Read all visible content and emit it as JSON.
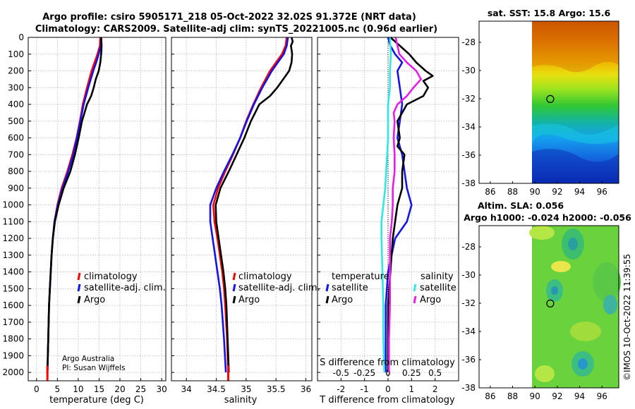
{
  "figure": {
    "title_line1": "Argo profile: csiro 5905171_218 05-Oct-2022 32.02S 91.372E (NRT data)",
    "title_line2": "Climatology: CARS2009. Satellite-adj clim: synTS_20221005.nc (0.96d earlier)",
    "credit_line1": "Argo Australia",
    "credit_line2": "PI: Susan Wijffels",
    "imos_stamp": "©IMOS 10-Oct-2022 11:39:55"
  },
  "colors": {
    "climatology": "#ff0000",
    "satellite": "#1414e6",
    "argo": "#000000",
    "salinity_argo": "#e61ee6",
    "salinity_satellite": "#32e6e6"
  },
  "chart_data": [
    {
      "type": "line",
      "name": "temperature",
      "xlabel": "temperature (deg C)",
      "ylabel": "",
      "xlim": [
        -2,
        31
      ],
      "ylim": [
        2050,
        0
      ],
      "xticks": [
        0,
        5,
        10,
        15,
        20,
        25,
        30
      ],
      "yticks": [
        0,
        100,
        200,
        300,
        400,
        500,
        600,
        700,
        800,
        900,
        1000,
        1100,
        1200,
        1300,
        1400,
        1500,
        1600,
        1700,
        1800,
        1900,
        2000
      ],
      "grid": true,
      "legend": [
        "climatology",
        "satellite-adj. clim.",
        "Argo"
      ],
      "series": [
        {
          "name": "climatology",
          "depth": [
            0,
            50,
            100,
            150,
            200,
            300,
            400,
            500,
            600,
            700,
            800,
            900,
            1000,
            1100,
            1200,
            1300,
            1400,
            1500,
            1600,
            1800,
            2000
          ],
          "values": [
            15.3,
            15.2,
            14.6,
            13.9,
            13.2,
            12.1,
            11.1,
            10.4,
            9.6,
            8.6,
            7.4,
            6.0,
            5.0,
            4.3,
            3.9,
            3.6,
            3.4,
            3.2,
            3.0,
            2.8,
            2.6
          ]
        },
        {
          "name": "satellite-adj. clim.",
          "depth": [
            0,
            50,
            100,
            150,
            200,
            300,
            400,
            500,
            600,
            700,
            800,
            900,
            1000,
            1100,
            1200,
            1300,
            1400,
            1500,
            1600,
            1800,
            2000
          ],
          "values": [
            15.5,
            15.4,
            14.9,
            14.3,
            13.6,
            12.4,
            11.3,
            10.5,
            9.7,
            8.8,
            7.6,
            6.2,
            5.1,
            4.3,
            3.9,
            3.6,
            3.4,
            3.2,
            3.0,
            2.8,
            2.6
          ]
        },
        {
          "name": "Argo",
          "depth": [
            0,
            50,
            100,
            150,
            200,
            250,
            300,
            350,
            400,
            450,
            500,
            600,
            700,
            800,
            900,
            1000,
            1100,
            1200,
            1300,
            1400,
            1500,
            1600,
            1800,
            2000
          ],
          "values": [
            15.5,
            15.6,
            15.5,
            15.3,
            14.9,
            14.2,
            13.7,
            13.1,
            12.1,
            11.5,
            10.9,
            10.1,
            9.2,
            8.1,
            6.5,
            5.3,
            4.4,
            3.9,
            3.6,
            3.4,
            3.2,
            3.0,
            2.8,
            2.6
          ]
        }
      ]
    },
    {
      "type": "line",
      "name": "salinity",
      "xlabel": "salinity",
      "ylabel": "",
      "xlim": [
        33.75,
        36.1
      ],
      "ylim": [
        2050,
        0
      ],
      "xticks": [
        34,
        34.5,
        35,
        35.5,
        36
      ],
      "xticklabels": [
        "34",
        "34.5",
        "35",
        "35.5",
        "36"
      ],
      "grid": true,
      "legend": [
        "climatology",
        "satellite-adj. clim.",
        "Argo"
      ],
      "series": [
        {
          "name": "climatology",
          "depth": [
            0,
            50,
            100,
            150,
            200,
            300,
            400,
            500,
            600,
            700,
            800,
            900,
            1000,
            1100,
            1200,
            1300,
            1400,
            1500,
            1600,
            1800,
            2000
          ],
          "values": [
            35.68,
            35.66,
            35.6,
            35.5,
            35.4,
            35.25,
            35.12,
            35.0,
            34.9,
            34.78,
            34.65,
            34.53,
            34.45,
            34.47,
            34.52,
            34.56,
            34.6,
            34.63,
            34.65,
            34.68,
            34.7
          ]
        },
        {
          "name": "satellite-adj. clim.",
          "depth": [
            0,
            50,
            100,
            150,
            200,
            300,
            400,
            500,
            600,
            700,
            800,
            900,
            1000,
            1100,
            1200,
            1300,
            1400,
            1500,
            1600,
            1800,
            2000
          ],
          "values": [
            35.7,
            35.68,
            35.63,
            35.53,
            35.43,
            35.27,
            35.13,
            35.01,
            34.9,
            34.77,
            34.63,
            34.5,
            34.4,
            34.4,
            34.44,
            34.48,
            34.52,
            34.56,
            34.59,
            34.63,
            34.66
          ]
        },
        {
          "name": "Argo",
          "depth": [
            0,
            25,
            50,
            100,
            150,
            200,
            250,
            300,
            350,
            400,
            450,
            500,
            600,
            700,
            800,
            900,
            1000,
            1100,
            1200,
            1300,
            1400,
            1500,
            1600,
            1800,
            2000
          ],
          "values": [
            35.76,
            35.78,
            35.75,
            35.77,
            35.76,
            35.72,
            35.62,
            35.52,
            35.4,
            35.22,
            35.15,
            35.08,
            34.97,
            34.84,
            34.71,
            34.57,
            34.49,
            34.5,
            34.54,
            34.58,
            34.62,
            34.65,
            34.67,
            34.69,
            34.71
          ]
        }
      ]
    },
    {
      "type": "line",
      "name": "difference",
      "xlabel": "T difference from climatology",
      "xlabel_top": "S difference from climatology",
      "xlim": [
        -3,
        3
      ],
      "ylim": [
        2050,
        0
      ],
      "xticks": [
        -2,
        -1,
        0,
        1,
        2
      ],
      "s_ticklabels": [
        "-0.5",
        "-0.25",
        "0",
        "0.25",
        "0.5"
      ],
      "grid": true,
      "legend_temperature_title": "temperature",
      "legend_salinity_title": "salinity",
      "legend_items": [
        "satellite",
        "Argo",
        "satellite",
        "Argo"
      ],
      "series": [
        {
          "name": "T satellite",
          "depth": [
            0,
            50,
            100,
            150,
            200,
            300,
            400,
            500,
            600,
            700,
            800,
            900,
            1000,
            1100,
            1200,
            1400,
            1600,
            1800,
            2000
          ],
          "values": [
            0.0,
            0.1,
            0.3,
            0.6,
            0.4,
            0.5,
            0.6,
            0.5,
            0.4,
            0.6,
            0.7,
            0.8,
            1.0,
            0.8,
            0.3,
            0.0,
            -0.1,
            -0.1,
            -0.1
          ]
        },
        {
          "name": "T Argo",
          "depth": [
            0,
            50,
            100,
            150,
            200,
            230,
            260,
            300,
            350,
            400,
            450,
            500,
            600,
            650,
            700,
            800,
            900,
            1000,
            1100,
            1200,
            1400,
            1600,
            1800,
            2000
          ],
          "values": [
            0.1,
            0.5,
            0.9,
            1.2,
            1.6,
            1.9,
            1.5,
            1.7,
            1.5,
            0.8,
            0.6,
            0.4,
            0.5,
            0.4,
            0.7,
            0.6,
            0.6,
            0.4,
            0.3,
            0.2,
            0.1,
            0.0,
            0.0,
            0.0
          ]
        },
        {
          "name": "S satellite",
          "depth": [
            0,
            100,
            200,
            300,
            400,
            500,
            600,
            700,
            800,
            900,
            1000,
            1100,
            1200,
            1400,
            1600,
            1800,
            2000
          ],
          "values": [
            0.02,
            0.03,
            0.02,
            0.02,
            0.0,
            0.0,
            0.0,
            -0.01,
            -0.02,
            -0.03,
            -0.05,
            -0.07,
            -0.07,
            -0.06,
            -0.05,
            -0.05,
            -0.04
          ]
        },
        {
          "name": "S Argo",
          "depth": [
            0,
            50,
            100,
            150,
            200,
            250,
            300,
            350,
            400,
            450,
            500,
            600,
            700,
            800,
            900,
            1000,
            1100,
            1200,
            1400,
            1600,
            1800,
            2000
          ],
          "values": [
            0.08,
            0.1,
            0.12,
            0.2,
            0.3,
            0.35,
            0.27,
            0.2,
            0.1,
            0.06,
            0.07,
            0.06,
            0.07,
            0.07,
            0.05,
            0.05,
            0.04,
            0.02,
            0.02,
            0.02,
            0.01,
            0.01
          ]
        }
      ]
    },
    {
      "type": "heatmap",
      "name": "sst-map",
      "title": "sat. SST: 15.8 Argo: 15.6",
      "xlim": [
        85,
        97.5
      ],
      "ylim": [
        -38,
        -26.5
      ],
      "xticks": [
        86,
        88,
        90,
        92,
        94,
        96
      ],
      "yticks": [
        -28,
        -30,
        -32,
        -34,
        -36,
        -38
      ],
      "argo_position": {
        "lon": 91.37,
        "lat": -32.02
      },
      "colorscale": [
        "#c85000",
        "#e07800",
        "#f0b400",
        "#f0e000",
        "#9be41e",
        "#32c832",
        "#14b4a0",
        "#14a0f0",
        "#1464dc",
        "#0a28b4"
      ]
    },
    {
      "type": "heatmap",
      "name": "sla-map",
      "title_line1": "Altim. SLA: 0.056",
      "title_line2": "Argo h1000: -0.024 h2000: -0.056",
      "xlim": [
        85,
        97.5
      ],
      "ylim": [
        -38,
        -26.5
      ],
      "xticks": [
        86,
        88,
        90,
        92,
        94,
        96
      ],
      "yticks": [
        -28,
        -30,
        -32,
        -34,
        -36,
        -38
      ],
      "argo_position": {
        "lon": 91.37,
        "lat": -32.02
      }
    }
  ]
}
